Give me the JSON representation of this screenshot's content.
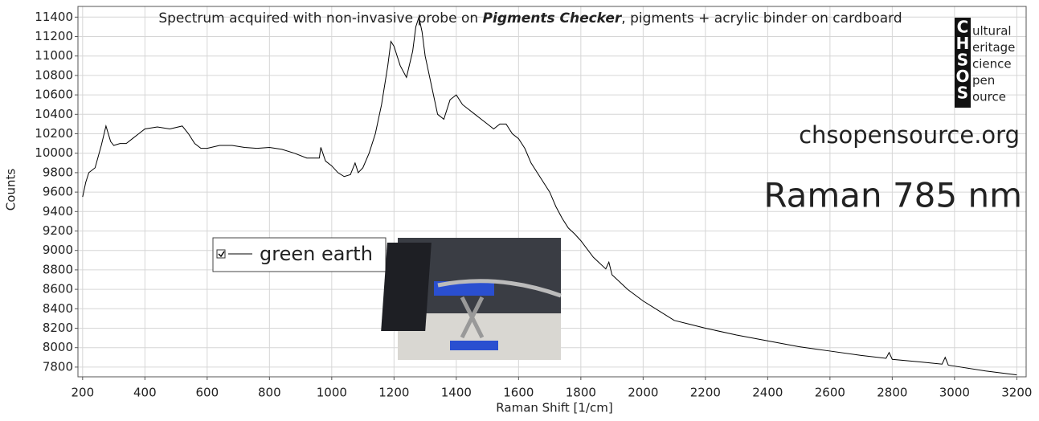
{
  "chart_data": {
    "type": "line",
    "title_parts": [
      "Spectrum acquired with non-invasive probe on ",
      "Pigments Checker",
      ", pigments + acrylic binder on cardboard"
    ],
    "x_label": "Raman Shift [1/cm]",
    "y_label": "Counts",
    "annotations": [
      "chsopensource.org",
      "Raman 785 nm"
    ],
    "logo": {
      "letters": [
        "C",
        "H",
        "S",
        "O",
        "S"
      ],
      "words": [
        "ultural",
        "eritage",
        "cience",
        "pen",
        "ource"
      ]
    },
    "xlim": [
      185,
      3230
    ],
    "ylim": [
      7700,
      11510
    ],
    "xticks": [
      200,
      400,
      600,
      800,
      1000,
      1200,
      1400,
      1600,
      1800,
      2000,
      2200,
      2400,
      2600,
      2800,
      3000,
      3200
    ],
    "yticks": [
      7800,
      8000,
      8200,
      8400,
      8600,
      8800,
      9000,
      9200,
      9400,
      9600,
      9800,
      10000,
      10200,
      10400,
      10600,
      10800,
      11000,
      11200,
      11400
    ],
    "grid": true,
    "x": [
      200,
      210,
      220,
      240,
      260,
      275,
      290,
      300,
      320,
      340,
      360,
      380,
      400,
      440,
      480,
      520,
      540,
      560,
      580,
      600,
      640,
      680,
      720,
      760,
      800,
      840,
      880,
      920,
      960,
      965,
      980,
      1000,
      1020,
      1040,
      1060,
      1075,
      1085,
      1100,
      1120,
      1140,
      1160,
      1180,
      1190,
      1200,
      1220,
      1240,
      1260,
      1270,
      1280,
      1290,
      1300,
      1320,
      1340,
      1360,
      1380,
      1400,
      1420,
      1440,
      1460,
      1480,
      1500,
      1520,
      1540,
      1560,
      1580,
      1600,
      1620,
      1640,
      1660,
      1680,
      1700,
      1720,
      1740,
      1760,
      1780,
      1800,
      1840,
      1880,
      1890,
      1900,
      1950,
      2000,
      2100,
      2150,
      2200,
      2300,
      2400,
      2500,
      2600,
      2700,
      2780,
      2790,
      2800,
      2900,
      2960,
      2970,
      2980,
      3000,
      3100,
      3200
    ],
    "series": [
      {
        "name": "green earth",
        "color": "#000000",
        "values": [
          9550,
          9700,
          9800,
          9850,
          10080,
          10280,
          10120,
          10080,
          10100,
          10100,
          10150,
          10200,
          10250,
          10270,
          10250,
          10280,
          10200,
          10100,
          10050,
          10050,
          10080,
          10080,
          10060,
          10050,
          10060,
          10040,
          10000,
          9950,
          9950,
          10060,
          9920,
          9870,
          9800,
          9760,
          9780,
          9900,
          9800,
          9850,
          10000,
          10200,
          10500,
          10900,
          11150,
          11100,
          10900,
          10780,
          11050,
          11300,
          11400,
          11250,
          11000,
          10700,
          10400,
          10350,
          10550,
          10600,
          10500,
          10450,
          10400,
          10350,
          10300,
          10250,
          10300,
          10300,
          10200,
          10150,
          10050,
          9900,
          9800,
          9700,
          9600,
          9450,
          9330,
          9230,
          9170,
          9100,
          8930,
          8810,
          8880,
          8750,
          8600,
          8480,
          8280,
          8240,
          8200,
          8130,
          8070,
          8010,
          7965,
          7920,
          7890,
          7950,
          7880,
          7850,
          7830,
          7900,
          7820,
          7810,
          7760,
          7720
        ]
      }
    ]
  }
}
